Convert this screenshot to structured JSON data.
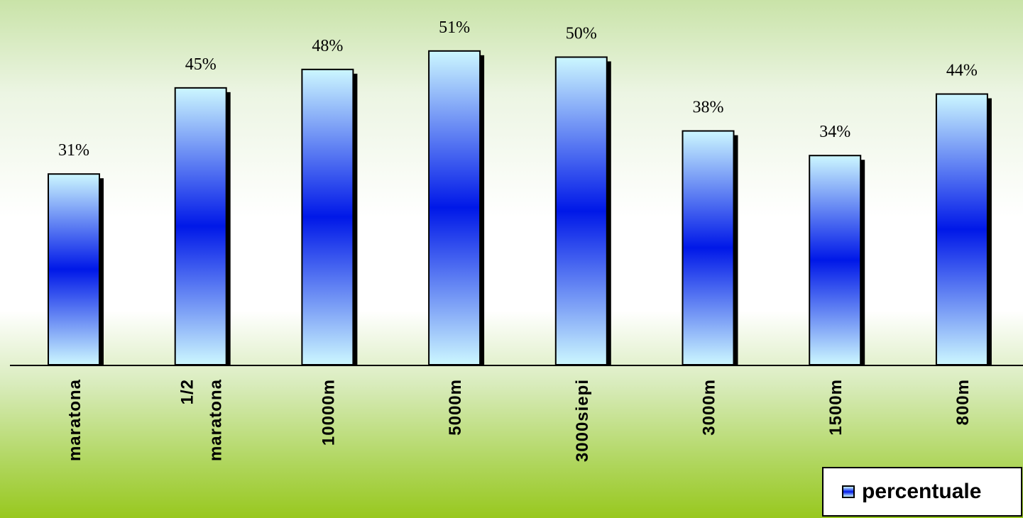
{
  "chart_data": {
    "type": "bar",
    "categories": [
      "maratona",
      "1/2 maratona",
      "10000m",
      "5000m",
      "3000siepi",
      "3000m",
      "1500m",
      "800m"
    ],
    "category_lines": [
      [
        "maratona"
      ],
      [
        "1/2",
        "maratona"
      ],
      [
        "10000m"
      ],
      [
        "5000m"
      ],
      [
        "3000siepi"
      ],
      [
        "3000m"
      ],
      [
        "1500m"
      ],
      [
        "800m"
      ]
    ],
    "series": [
      {
        "name": "percentuale",
        "values": [
          31,
          45,
          48,
          51,
          50,
          38,
          34,
          44
        ]
      }
    ],
    "data_labels": [
      "31%",
      "45%",
      "48%",
      "51%",
      "50%",
      "38%",
      "34%",
      "44%"
    ],
    "ylim": [
      0,
      51
    ],
    "grid": false,
    "legend": "bottom-right",
    "colors": {
      "bar_edge": "#ccf7ff",
      "bar_center": "#0018e8",
      "bar_border": "#000000",
      "bar_shadow": "#000000"
    }
  },
  "legend": {
    "label": "percentuale",
    "icon": "bar-swatch-icon"
  }
}
